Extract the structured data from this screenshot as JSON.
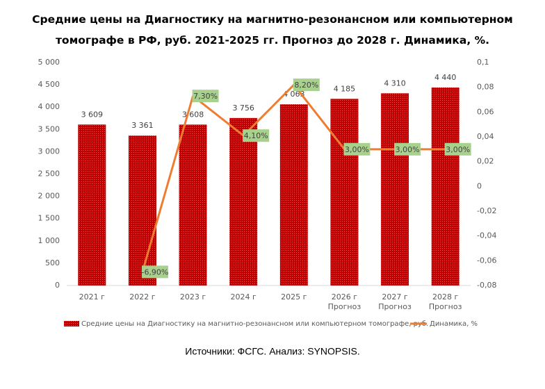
{
  "chart_data": {
    "type": "bar",
    "title": "Средние цены на Диагностику на магнитно-резонансном или компьютерном\nтомографе в РФ, руб. 2021-2025 гг. Прогноз до 2028 г. Динамика, %.",
    "categories": [
      "2021 г",
      "2022 г",
      "2023 г",
      "2024 г",
      "2025 г",
      "2026 г\nПрогноз",
      "2027 г\nПрогноз",
      "2028 г\nПрогноз"
    ],
    "series": [
      {
        "name": "Средние цены на Диагностику на магнитно-резонансном или компьютерном томографе, руб.",
        "type": "bar",
        "color": "#c00000",
        "values": [
          3609,
          3361,
          3608,
          3756,
          4063,
          4185,
          4310,
          4440
        ],
        "value_labels": [
          "3 609",
          "3 361",
          "3 608",
          "3 756",
          "4 063",
          "4 185",
          "4 310",
          "4 440"
        ]
      },
      {
        "name": "Динамика, %",
        "type": "line",
        "axis": "y2",
        "color": "#ed7d31",
        "values": [
          null,
          -0.069,
          0.073,
          0.041,
          0.082,
          0.03,
          0.03,
          0.03
        ],
        "value_labels": [
          null,
          "-6,90%",
          "7,30%",
          "4,10%",
          "8,20%",
          "3,00%",
          "3,00%",
          "3,00%"
        ]
      }
    ],
    "ylim": [
      0,
      5000
    ],
    "yticks": [
      0,
      500,
      {
        "value": 1000,
        "label": "1 000"
      },
      {
        "value": 1500,
        "label": "1 500"
      },
      {
        "value": 2000,
        "label": "2 000"
      },
      {
        "value": 2500,
        "label": "2 500"
      },
      {
        "value": 3000,
        "label": "3 000"
      },
      {
        "value": 3500,
        "label": "3 500"
      },
      {
        "value": 4000,
        "label": "4 000"
      },
      {
        "value": 4500,
        "label": "4 500"
      },
      {
        "value": 5000,
        "label": "5 000"
      }
    ],
    "y2lim": [
      -0.08,
      0.1
    ],
    "y2ticks": [
      {
        "value": -0.08,
        "label": "-0,08"
      },
      {
        "value": -0.06,
        "label": "-0,06"
      },
      {
        "value": -0.04,
        "label": "-0,04"
      },
      {
        "value": -0.02,
        "label": "-0,02"
      },
      0,
      {
        "value": 0.02,
        "label": "0,02"
      },
      {
        "value": 0.04,
        "label": "0,04"
      },
      {
        "value": 0.06,
        "label": "0,06"
      },
      {
        "value": 0.08,
        "label": "0,08"
      },
      {
        "value": 0.1,
        "label": "0,1"
      }
    ],
    "legend": "bottom",
    "source": "Источники: ФСГС. Анализ: SYNOPSIS."
  }
}
